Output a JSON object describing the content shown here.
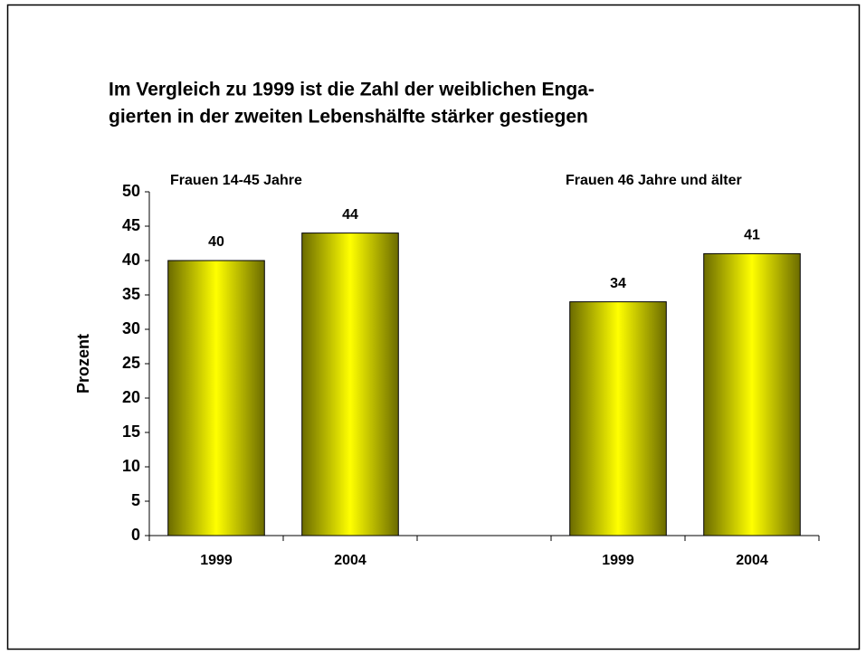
{
  "chart_data": {
    "type": "bar",
    "title": [
      "Im Vergleich zu 1999 ist die Zahl der weiblichen Enga-",
      "gierten in der zweiten Lebenshälfte stärker gestiegen"
    ],
    "annotations": [
      "Frauen 14-45 Jahre",
      "Frauen 46 Jahre und älter"
    ],
    "y_label": "Prozent",
    "categories": [
      "1999",
      "2004",
      null,
      "1999",
      "2004"
    ],
    "values": [
      40,
      44,
      null,
      34,
      41
    ],
    "color": "#ffff00",
    "ylim": [
      0,
      50
    ],
    "yticks": [
      0,
      5,
      10,
      15,
      20,
      25,
      30,
      35,
      40,
      45,
      50
    ],
    "grid": false
  }
}
